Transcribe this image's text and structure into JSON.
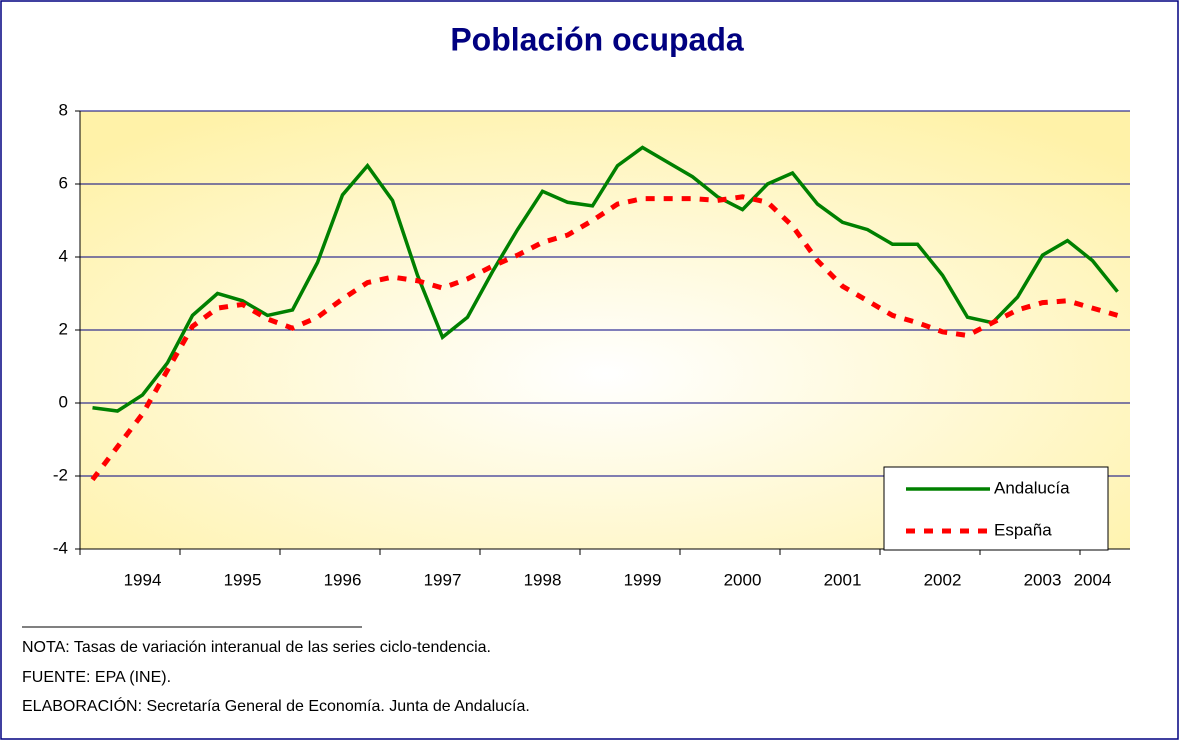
{
  "chart_data": {
    "type": "line",
    "title": "Población ocupada",
    "categories": [
      null,
      null,
      "1994",
      null,
      null,
      null,
      "1995",
      null,
      null,
      null,
      "1996",
      null,
      null,
      null,
      "1997",
      null,
      null,
      null,
      "1998",
      null,
      null,
      null,
      "1999",
      null,
      null,
      null,
      "2000",
      null,
      null,
      null,
      "2001",
      null,
      null,
      null,
      "2002",
      null,
      null,
      null,
      "2003",
      null,
      "2004",
      null
    ],
    "series": [
      {
        "name": "Andalucía",
        "color": "#008000",
        "dash": false,
        "values": [
          -0.13,
          -0.22,
          0.22,
          1.1,
          2.4,
          3.0,
          2.8,
          2.4,
          2.55,
          3.85,
          5.7,
          6.5,
          5.55,
          3.5,
          1.8,
          2.35,
          3.6,
          4.75,
          5.8,
          5.5,
          5.4,
          6.5,
          7.0,
          6.6,
          6.2,
          5.65,
          5.3,
          6.0,
          6.3,
          5.45,
          4.95,
          4.75,
          4.35,
          4.35,
          3.5,
          2.35,
          2.2,
          2.9,
          4.05,
          4.45,
          3.9,
          3.05
        ]
      },
      {
        "name": "España",
        "color": "#ff0000",
        "dash": true,
        "values": [
          -2.1,
          -1.2,
          -0.3,
          0.9,
          2.1,
          2.6,
          2.7,
          2.3,
          2.05,
          2.35,
          2.85,
          3.3,
          3.45,
          3.35,
          3.15,
          3.4,
          3.75,
          4.05,
          4.4,
          4.6,
          5.0,
          5.45,
          5.6,
          5.6,
          5.6,
          5.55,
          5.65,
          5.5,
          4.85,
          3.9,
          3.2,
          2.8,
          2.4,
          2.2,
          1.95,
          1.85,
          2.2,
          2.55,
          2.75,
          2.8,
          2.6,
          2.4
        ]
      }
    ],
    "ylim": [
      -4,
      8
    ],
    "yticks": [
      -4,
      -2,
      0,
      2,
      4,
      6,
      8
    ],
    "grid": true,
    "legend": "bottom-right",
    "notes": [
      "NOTA: Tasas de variación interanual de las series ciclo-tendencia.",
      "FUENTE: EPA (INE).",
      "ELABORACIÓN: Secretaría General de Economía. Junta de Andalucía."
    ]
  }
}
